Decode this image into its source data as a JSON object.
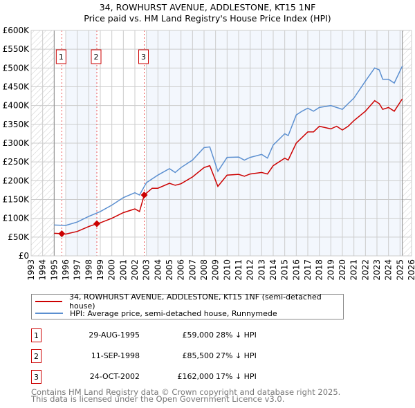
{
  "chart_data": {
    "type": "line",
    "title": "34, ROWHURST AVENUE, ADDLESTONE, KT15 1NF",
    "subtitle": "Price paid vs. HM Land Registry's House Price Index (HPI)",
    "xlim": [
      1993,
      2026
    ],
    "ylim": [
      0,
      600000
    ],
    "x_ticks": [
      "1993",
      "1994",
      "1995",
      "1996",
      "1997",
      "1998",
      "1999",
      "2000",
      "2001",
      "2002",
      "2003",
      "2004",
      "2005",
      "2006",
      "2007",
      "2008",
      "2009",
      "2010",
      "2011",
      "2012",
      "2013",
      "2014",
      "2015",
      "2016",
      "2017",
      "2018",
      "2019",
      "2020",
      "2021",
      "2022",
      "2023",
      "2024",
      "2025",
      "2026"
    ],
    "y_ticks": [
      {
        "v": 0,
        "label": "£0"
      },
      {
        "v": 50000,
        "label": "£50K"
      },
      {
        "v": 100000,
        "label": "£100K"
      },
      {
        "v": 150000,
        "label": "£150K"
      },
      {
        "v": 200000,
        "label": "£200K"
      },
      {
        "v": 250000,
        "label": "£250K"
      },
      {
        "v": 300000,
        "label": "£300K"
      },
      {
        "v": 350000,
        "label": "£350K"
      },
      {
        "v": 400000,
        "label": "£400K"
      },
      {
        "v": 450000,
        "label": "£450K"
      },
      {
        "v": 500000,
        "label": "£500K"
      },
      {
        "v": 550000,
        "label": "£550K"
      },
      {
        "v": 600000,
        "label": "£600K"
      }
    ],
    "grid": true,
    "data_range": [
      1995,
      2025.2
    ],
    "series": [
      {
        "name": "34, ROWHURST AVENUE, ADDLESTONE, KT15 1NF (semi-detached house)",
        "color": "#cc0000",
        "x": [
          1995,
          1995.66,
          1996,
          1997,
          1998,
          1998.7,
          1999,
          2000,
          2001,
          2002,
          2002.4,
          2002.81,
          2003.5,
          2004,
          2005,
          2005.5,
          2006,
          2007,
          2008,
          2008.5,
          2009.2,
          2010,
          2011,
          2011.5,
          2012,
          2013,
          2013.5,
          2014,
          2015,
          2015.3,
          2016,
          2016.5,
          2017,
          2017.5,
          2018,
          2019,
          2019.5,
          2020,
          2020.5,
          2021,
          2022,
          2022.8,
          2023.2,
          2023.5,
          2024,
          2024.5,
          2025.2
        ],
        "y": [
          60000,
          59000,
          58000,
          65000,
          78000,
          85500,
          88000,
          100000,
          115000,
          125000,
          118000,
          162000,
          180000,
          180000,
          193000,
          188000,
          192000,
          210000,
          235000,
          240000,
          185000,
          215000,
          217000,
          212000,
          218000,
          222000,
          218000,
          240000,
          260000,
          255000,
          300000,
          315000,
          330000,
          330000,
          345000,
          338000,
          345000,
          335000,
          345000,
          360000,
          385000,
          413000,
          405000,
          390000,
          395000,
          385000,
          418000
        ]
      },
      {
        "name": "HPI: Average price, semi-detached house, Runnymede",
        "color": "#5b8fd0",
        "x": [
          1995,
          1996,
          1997,
          1998,
          1999,
          2000,
          2001,
          2002,
          2002.4,
          2003,
          2004,
          2005,
          2005.5,
          2006,
          2007,
          2008,
          2008.5,
          2009.2,
          2010,
          2011,
          2011.5,
          2012,
          2013,
          2013.5,
          2014,
          2015,
          2015.3,
          2016,
          2016.5,
          2017,
          2017.5,
          2018,
          2019,
          2019.5,
          2020,
          2020.5,
          2021,
          2022,
          2022.8,
          2023.2,
          2023.5,
          2024,
          2024.5,
          2025.2
        ],
        "y": [
          82000,
          81000,
          90000,
          105000,
          118000,
          135000,
          155000,
          168000,
          162000,
          195000,
          215000,
          232000,
          222000,
          235000,
          255000,
          288000,
          290000,
          225000,
          262000,
          263000,
          255000,
          262000,
          270000,
          260000,
          295000,
          325000,
          320000,
          375000,
          385000,
          393000,
          385000,
          395000,
          400000,
          395000,
          390000,
          405000,
          420000,
          465000,
          500000,
          495000,
          470000,
          470000,
          460000,
          505000
        ]
      }
    ],
    "sales": [
      {
        "label": "1",
        "x": 1995.66,
        "y": 59000
      },
      {
        "label": "2",
        "x": 1998.7,
        "y": 85500
      },
      {
        "label": "3",
        "x": 2002.81,
        "y": 162000
      }
    ]
  },
  "legend": {
    "property": "34, ROWHURST AVENUE, ADDLESTONE, KT15 1NF (semi-detached house)",
    "hpi": "HPI: Average price, semi-detached house, Runnymede"
  },
  "transactions": [
    {
      "num": "1",
      "date": "29-AUG-1995",
      "price": "£59,000",
      "hpi": "28% ↓ HPI"
    },
    {
      "num": "2",
      "date": "11-SEP-1998",
      "price": "£85,500",
      "hpi": "27% ↓ HPI"
    },
    {
      "num": "3",
      "date": "24-OCT-2002",
      "price": "£162,000",
      "hpi": "17% ↓ HPI"
    }
  ],
  "footer": {
    "line1": "Contains HM Land Registry data © Crown copyright and database right 2025.",
    "line2": "This data is licensed under the Open Government Licence v3.0."
  }
}
